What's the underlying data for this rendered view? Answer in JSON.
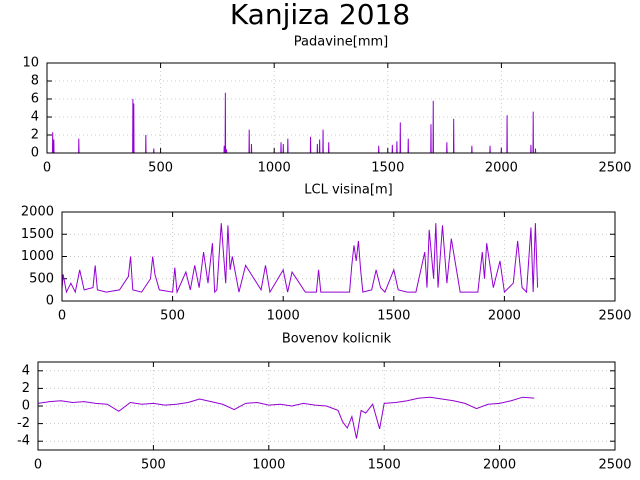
{
  "title": "Kanjiza 2018",
  "chart_data": [
    {
      "type": "line",
      "title": "Padavine[mm]",
      "color": "#9400d3",
      "grid": true,
      "xlim": [
        0,
        2500
      ],
      "xticks": [
        0,
        500,
        1000,
        1500,
        2000,
        2500
      ],
      "ylim": [
        0,
        10
      ],
      "yticks": [
        0,
        2,
        4,
        6,
        8,
        10
      ],
      "x": [
        0,
        24,
        25,
        26,
        29,
        30,
        31,
        139,
        140,
        141,
        377,
        378,
        379,
        381,
        382,
        383,
        434,
        435,
        436,
        469,
        470,
        471,
        779,
        780,
        781,
        784,
        785,
        786,
        789,
        790,
        791,
        889,
        890,
        891,
        899,
        900,
        901,
        1029,
        1030,
        1031,
        1039,
        1040,
        1041,
        1059,
        1060,
        1061,
        1159,
        1160,
        1161,
        1189,
        1190,
        1191,
        1199,
        1200,
        1201,
        1214,
        1215,
        1216,
        1239,
        1240,
        1241,
        1459,
        1460,
        1461,
        1519,
        1520,
        1521,
        1539,
        1540,
        1541,
        1554,
        1555,
        1556,
        1589,
        1590,
        1591,
        1689,
        1690,
        1691,
        1699,
        1700,
        1701,
        1759,
        1760,
        1761,
        1789,
        1790,
        1791,
        1869,
        1870,
        1871,
        1949,
        1950,
        1951,
        1999,
        2000,
        2001,
        2024,
        2025,
        2026,
        2129,
        2130,
        2131,
        2139,
        2140,
        2141,
        2149,
        2150,
        2151
      ],
      "values": [
        0,
        0,
        2.3,
        0,
        0,
        1.5,
        0,
        0,
        1.6,
        0,
        0,
        6.0,
        0,
        0,
        5.5,
        0,
        0,
        2.0,
        0,
        0,
        0.5,
        0,
        0,
        0.8,
        0,
        0,
        6.7,
        0,
        0,
        0.4,
        0,
        0,
        2.6,
        0,
        0,
        1.0,
        0,
        0,
        1.2,
        0,
        0,
        1.0,
        0,
        0,
        1.6,
        0,
        0,
        1.8,
        0,
        0,
        1.0,
        0,
        0,
        1.5,
        0,
        0,
        2.6,
        0,
        0,
        1.2,
        0,
        0,
        0.8,
        0,
        0,
        0.9,
        0,
        0,
        1.3,
        0,
        0,
        3.4,
        0,
        0,
        1.6,
        0,
        0,
        3.2,
        0,
        0,
        5.8,
        0,
        0,
        1.2,
        0,
        0,
        3.8,
        0,
        0,
        0.8,
        0,
        0,
        0.8,
        0,
        0,
        0.6,
        0,
        0,
        4.2,
        0,
        0,
        0.9,
        0,
        0,
        4.6,
        0,
        0,
        0.5,
        0
      ]
    },
    {
      "type": "line",
      "title": "LCL visina[m]",
      "color": "#9400d3",
      "grid": true,
      "xlim": [
        0,
        2500
      ],
      "xticks": [
        0,
        500,
        1000,
        1500,
        2000,
        2500
      ],
      "ylim": [
        0,
        2000
      ],
      "yticks": [
        0,
        500,
        1000,
        1500,
        2000
      ],
      "x": [
        0,
        5,
        20,
        40,
        60,
        80,
        100,
        140,
        150,
        160,
        200,
        260,
        300,
        310,
        320,
        360,
        400,
        410,
        420,
        440,
        500,
        510,
        520,
        560,
        580,
        600,
        620,
        640,
        660,
        680,
        690,
        700,
        720,
        740,
        750,
        760,
        770,
        800,
        830,
        900,
        920,
        940,
        1000,
        1020,
        1040,
        1100,
        1150,
        1160,
        1170,
        1200,
        1300,
        1310,
        1320,
        1330,
        1340,
        1350,
        1360,
        1400,
        1420,
        1440,
        1460,
        1500,
        1520,
        1560,
        1600,
        1640,
        1650,
        1660,
        1680,
        1690,
        1700,
        1720,
        1740,
        1760,
        1800,
        1880,
        1900,
        1910,
        1920,
        1950,
        1980,
        2000,
        2040,
        2060,
        2080,
        2100,
        2120,
        2130,
        2140,
        2150
      ],
      "values": [
        250,
        600,
        200,
        400,
        200,
        700,
        250,
        300,
        800,
        250,
        200,
        250,
        550,
        1000,
        250,
        200,
        500,
        1000,
        600,
        250,
        200,
        750,
        200,
        650,
        250,
        800,
        300,
        1100,
        400,
        1300,
        200,
        250,
        1750,
        400,
        1700,
        700,
        1000,
        200,
        800,
        250,
        800,
        200,
        700,
        200,
        650,
        200,
        200,
        700,
        200,
        200,
        200,
        800,
        1250,
        900,
        1350,
        700,
        200,
        250,
        700,
        300,
        200,
        700,
        250,
        200,
        200,
        1100,
        300,
        1600,
        500,
        1750,
        300,
        1700,
        400,
        1400,
        200,
        200,
        1100,
        500,
        1300,
        300,
        900,
        200,
        400,
        1350,
        300,
        200,
        1650,
        200,
        1750,
        300
      ]
    },
    {
      "type": "line",
      "title": "Bovenov kolicnik",
      "color": "#9400d3",
      "grid": true,
      "xlim": [
        0,
        2500
      ],
      "xticks": [
        0,
        500,
        1000,
        1500,
        2000,
        2500
      ],
      "ylim": [
        -5,
        5
      ],
      "yticks": [
        -4,
        -2,
        0,
        2,
        4
      ],
      "x": [
        0,
        50,
        100,
        150,
        200,
        250,
        300,
        350,
        400,
        450,
        500,
        550,
        600,
        650,
        700,
        750,
        800,
        850,
        900,
        950,
        1000,
        1050,
        1100,
        1150,
        1200,
        1250,
        1300,
        1320,
        1340,
        1360,
        1380,
        1400,
        1420,
        1450,
        1480,
        1500,
        1550,
        1600,
        1650,
        1700,
        1750,
        1800,
        1850,
        1900,
        1950,
        2000,
        2050,
        2100,
        2150
      ],
      "values": [
        0.3,
        0.5,
        0.6,
        0.4,
        0.5,
        0.3,
        0.2,
        -0.6,
        0.4,
        0.2,
        0.3,
        0.1,
        0.2,
        0.4,
        0.8,
        0.5,
        0.2,
        -0.4,
        0.3,
        0.4,
        0.1,
        0.2,
        0.0,
        0.3,
        0.1,
        0.0,
        -0.5,
        -1.8,
        -2.5,
        -1.2,
        -3.7,
        -0.5,
        -0.8,
        0.2,
        -2.6,
        0.3,
        0.4,
        0.6,
        0.9,
        1.0,
        0.8,
        0.6,
        0.3,
        -0.3,
        0.2,
        0.3,
        0.6,
        1.0,
        0.9
      ]
    }
  ]
}
